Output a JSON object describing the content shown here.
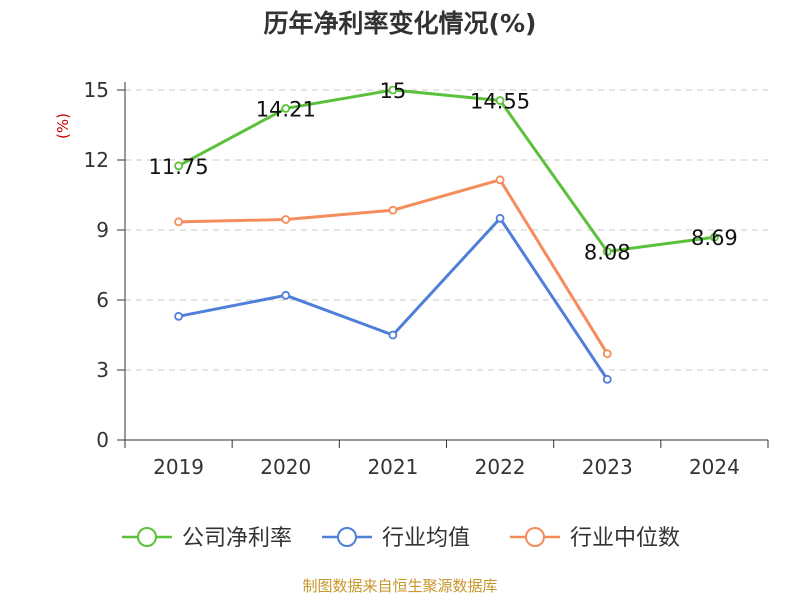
{
  "chart_data": {
    "type": "line",
    "title": "历年净利率变化情况(%)",
    "ylabel": "(%)",
    "xlabel": "",
    "categories": [
      "2019",
      "2020",
      "2021",
      "2022",
      "2023",
      "2024"
    ],
    "ylim": [
      0,
      15
    ],
    "yticks": [
      0,
      3,
      6,
      9,
      12,
      15
    ],
    "grid": true,
    "legend_position": "bottom",
    "series": [
      {
        "name": "公司净利率",
        "color": "#5cc13a",
        "values": [
          11.75,
          14.21,
          15,
          14.55,
          8.08,
          8.69
        ],
        "labels": [
          "11.75",
          "14.21",
          "15",
          "14.55",
          "8.08",
          "8.69"
        ]
      },
      {
        "name": "行业均值",
        "color": "#4f7fd9",
        "values": [
          5.3,
          6.2,
          4.5,
          9.5,
          2.6,
          null
        ]
      },
      {
        "name": "行业中位数",
        "color": "#f58c5b",
        "values": [
          9.35,
          9.45,
          9.85,
          11.15,
          3.7,
          null
        ]
      }
    ]
  },
  "source_text": "制图数据来自恒生聚源数据库"
}
